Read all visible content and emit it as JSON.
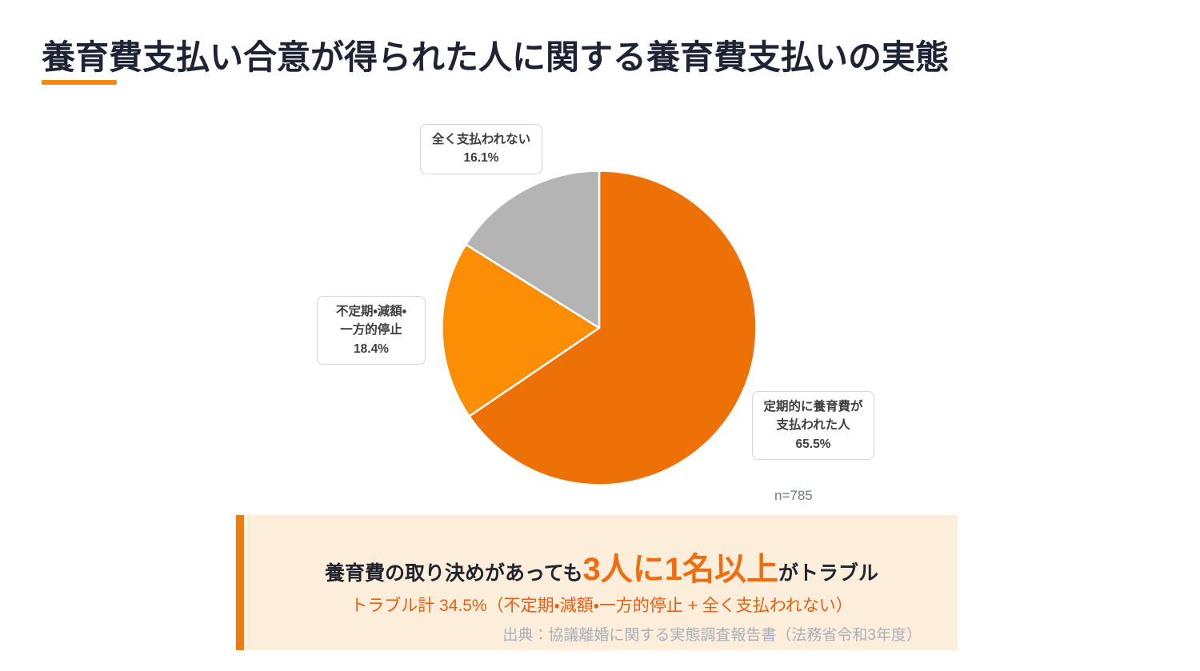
{
  "page": {
    "title": "養育費支払い合意が得られた人に関する養育費支払いの実態"
  },
  "chart_data": {
    "type": "pie",
    "title": "養育費支払い合意が得られた人に関する養育費支払いの実態",
    "sample_size_label": "n=785",
    "start_angle_deg": 0,
    "direction": "clockwise",
    "legend_position": "floating-labels",
    "slices": [
      {
        "label": "定期的に養育費が支払われた人",
        "value": 65.5,
        "pct_text": "65.5%",
        "label_lines": "定期的に養育費が\n支払われた人",
        "color": "#ED7107"
      },
      {
        "label": "不定期・減額・一方的停止",
        "value": 18.4,
        "pct_text": "18.4%",
        "label_lines": "不定期・減額・\n一方的停止",
        "color": "#FC8E05"
      },
      {
        "label": "全く支払われない",
        "value": 16.1,
        "pct_text": "16.1%",
        "label_lines": "全く支払われない",
        "color": "#B4B4B4"
      }
    ]
  },
  "callout": {
    "headline_prefix": "養育費の取り決めがあっても",
    "headline_highlight": "3人に1名以上",
    "headline_suffix": "がトラブル",
    "subline": "トラブル計 34.5%（不定期・減額・一方的停止 + 全く支払われない）",
    "source": "出典：協議離婚に関する実態調査報告書（法務省令和3年度）"
  },
  "colors": {
    "title_text": "#1E2433",
    "title_underline": "#F8870E",
    "pie_main": "#ED7107",
    "pie_secondary": "#FC8E05",
    "pie_gray": "#B4B4B4",
    "pie_divider": "#FFFFFF",
    "label_border": "#D5D5D5",
    "label_text": "#3F3F3F",
    "sample_size_text": "#6F7787",
    "callout_background": "#FDEEDC",
    "callout_accent_bar": "#F2790B",
    "headline_text": "#20242E",
    "headline_highlight": "#ED6D10",
    "subline_text": "#E95F10",
    "source_text": "#A9AFBA"
  }
}
